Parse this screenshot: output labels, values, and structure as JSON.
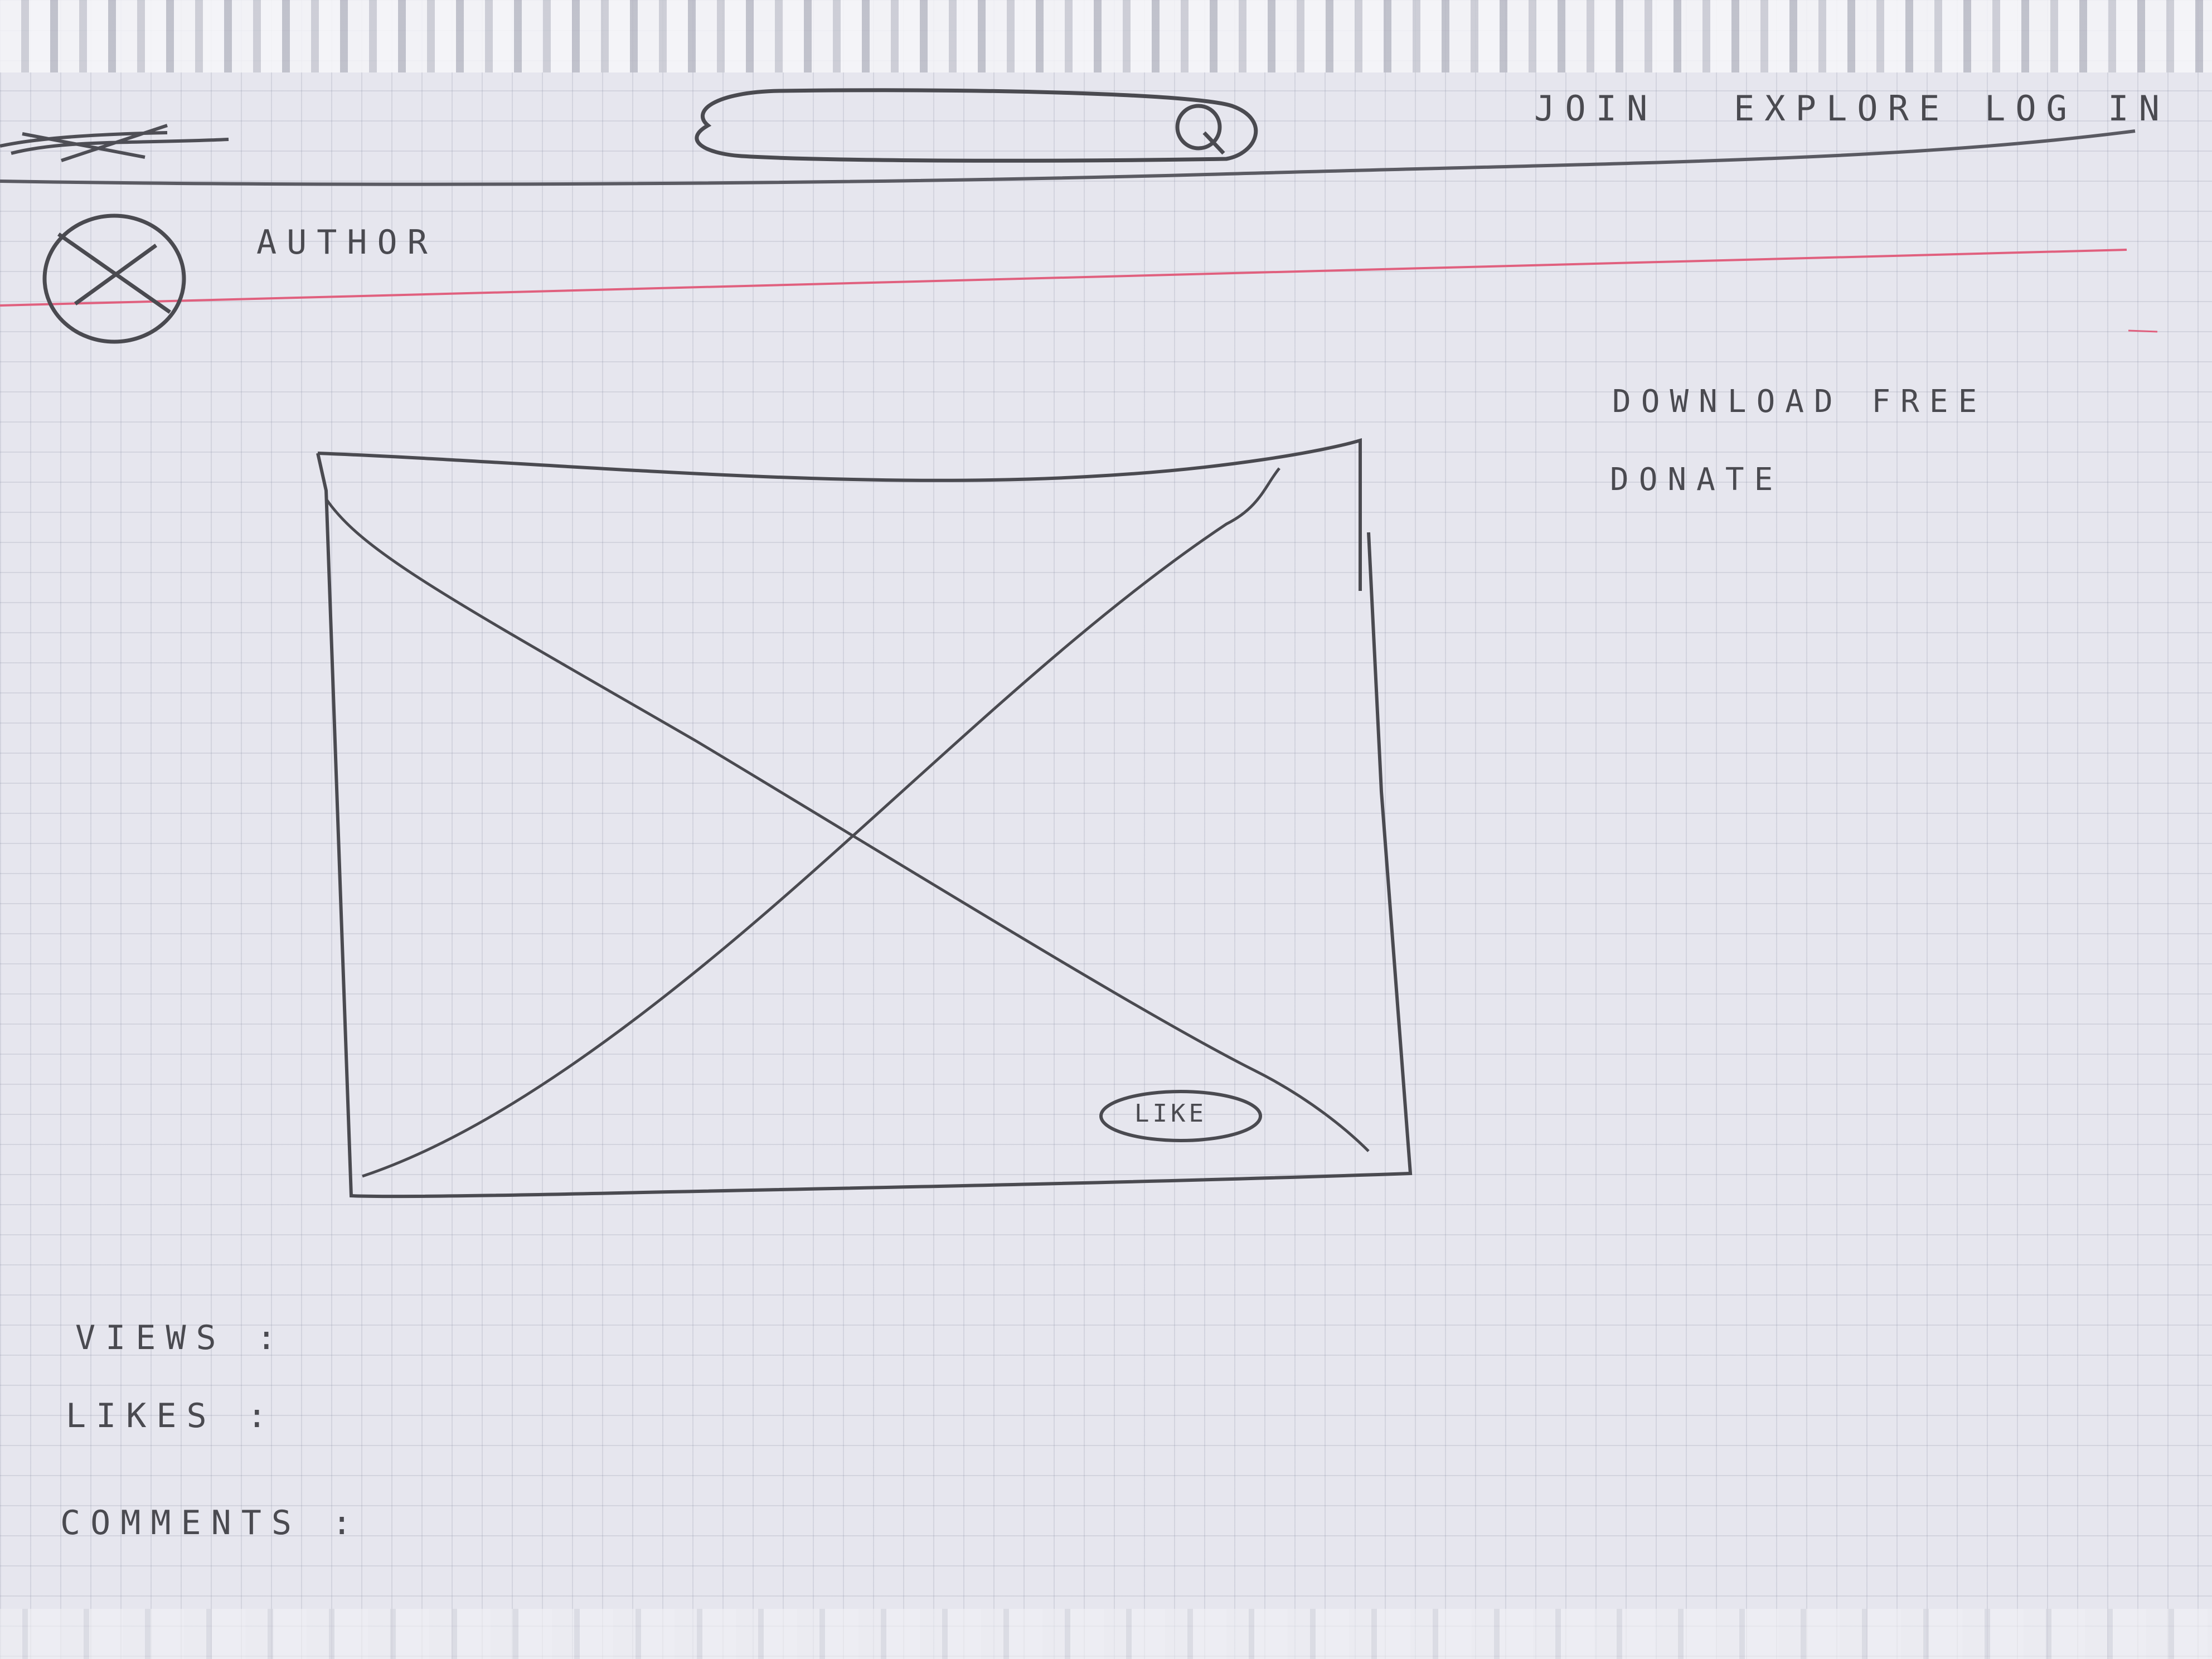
{
  "header": {
    "logo_scribble": "logo",
    "search": {
      "placeholder": "",
      "icon": "search-icon"
    },
    "nav": [
      {
        "label": "Join"
      },
      {
        "label": "Explore"
      },
      {
        "label": "Log in"
      }
    ]
  },
  "profile": {
    "avatar_icon": "avatar-placeholder-icon",
    "author_label": "Author"
  },
  "sidebar": {
    "links": [
      {
        "label": "Download free"
      },
      {
        "label": "Donate"
      }
    ]
  },
  "media": {
    "image_icon": "image-placeholder-icon",
    "like_label": "Like"
  },
  "stats": {
    "views_label": "Views :",
    "likes_label": "Likes :",
    "comments_label": "Comments :"
  },
  "colors": {
    "paper": "#e6e6ee",
    "pencil": "#4a4a50",
    "margin_line": "#e0607e"
  }
}
